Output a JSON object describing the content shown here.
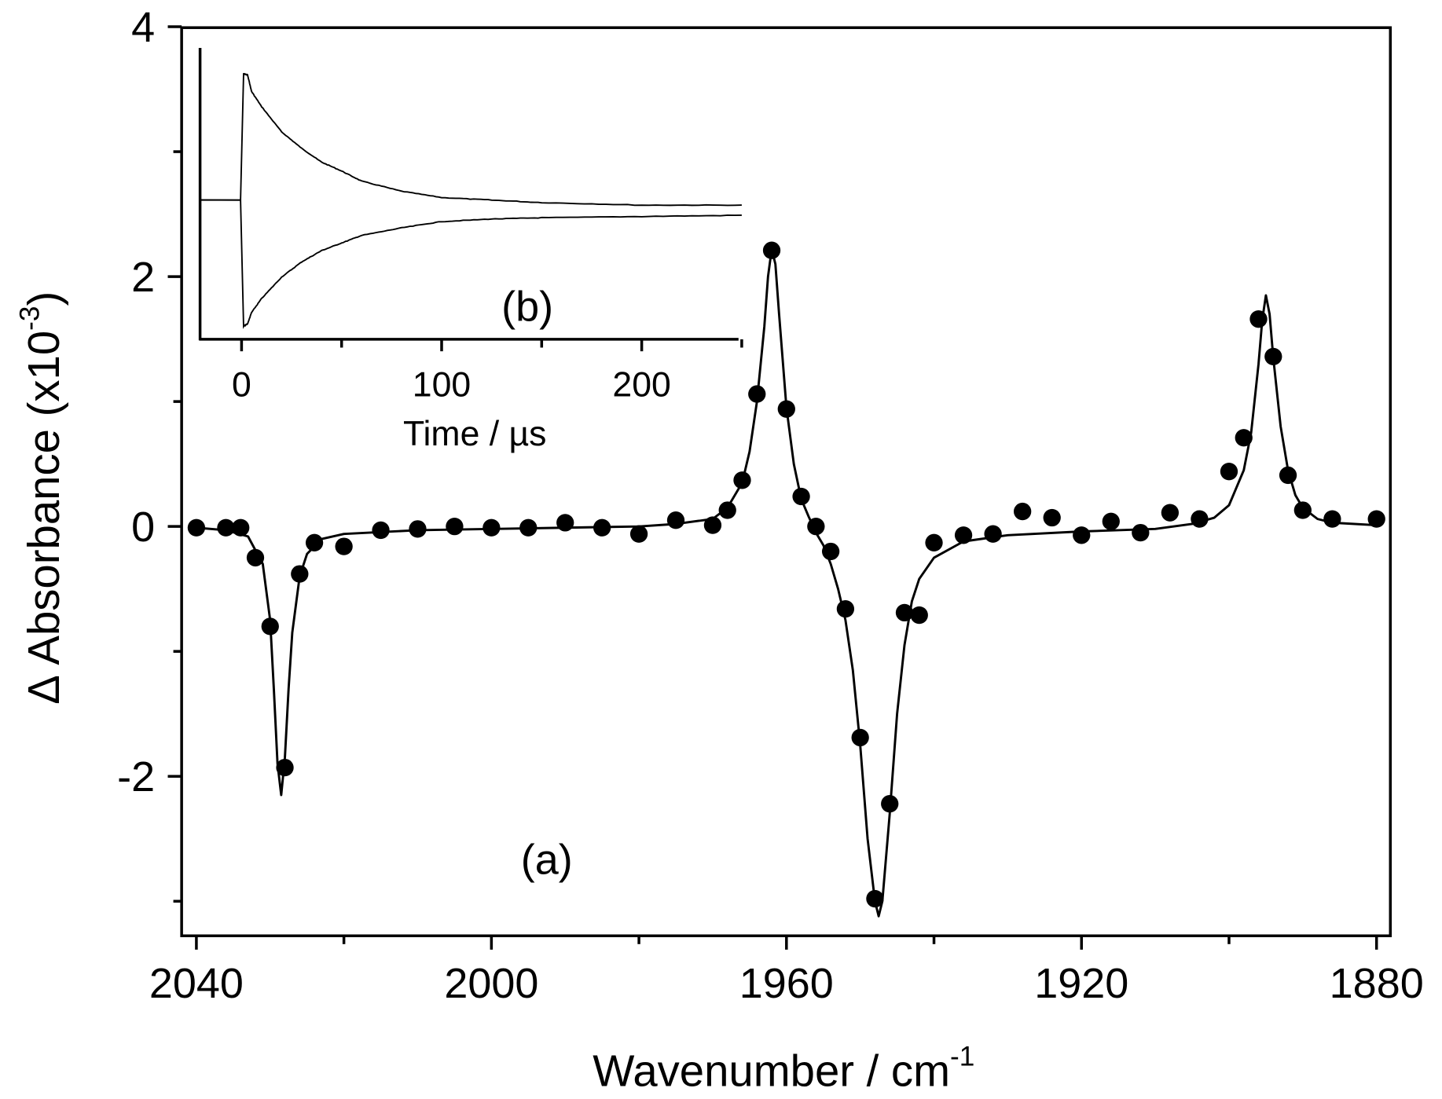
{
  "chart_data": [
    {
      "type": "scatter",
      "panel_label": "(a)",
      "xlabel": "Wavenumber / cm",
      "xlabel_sup": "-1",
      "ylabel": "Δ Absorbance (x10",
      "ylabel_sup": "-3",
      "ylabel_end": ")",
      "xlim": [
        2040,
        1880
      ],
      "x_reversed": true,
      "ylim": [
        -3.28,
        4
      ],
      "xticks": [
        "2040",
        "2000",
        "1960",
        "1920",
        "1880"
      ],
      "xtick_values": [
        2040,
        2000,
        1960,
        1920,
        1880
      ],
      "x_minor_ticks": [
        2020,
        1980,
        1940,
        1900
      ],
      "yticks": [
        "4",
        "2",
        "0",
        "-2"
      ],
      "ytick_values": [
        4,
        2,
        0,
        -2
      ],
      "y_minor_ticks": [
        3,
        1,
        -1,
        -3
      ],
      "grid": false,
      "series": [
        {
          "style": "filled-circles",
          "x": [
            2040,
            2036,
            2034,
            2032,
            2030,
            2028,
            2026,
            2024,
            2020,
            2015,
            2010,
            2005,
            2000,
            1995,
            1990,
            1985,
            1980,
            1975,
            1970,
            1968,
            1966,
            1964,
            1962,
            1960,
            1958,
            1956,
            1954,
            1952,
            1950,
            1948,
            1946,
            1944,
            1942,
            1940,
            1936,
            1932,
            1928,
            1924,
            1920,
            1916,
            1912,
            1908,
            1904,
            1900,
            1898,
            1896,
            1894,
            1892,
            1890,
            1886,
            1880
          ],
          "y": [
            -0.01,
            -0.01,
            -0.01,
            -0.25,
            -0.8,
            -1.93,
            -0.38,
            -0.13,
            -0.16,
            -0.03,
            -0.02,
            0,
            -0.01,
            -0.01,
            0.03,
            -0.01,
            -0.06,
            0.05,
            0.01,
            0.13,
            0.37,
            1.06,
            2.21,
            0.94,
            0.24,
            0,
            -0.2,
            -0.66,
            -1.69,
            -2.98,
            -2.22,
            -0.69,
            -0.71,
            -0.13,
            -0.07,
            -0.06,
            0.12,
            0.07,
            -0.07,
            0.04,
            -0.05,
            0.11,
            0.06,
            0.44,
            0.71,
            1.66,
            1.36,
            0.41,
            0.13,
            0.06,
            0.06
          ]
        },
        {
          "style": "line",
          "x": [
            2040,
            2036,
            2033,
            2031,
            2030,
            2029.5,
            2029,
            2028.5,
            2028,
            2027.5,
            2027,
            2026,
            2025,
            2023,
            2020,
            2010,
            2000,
            1990,
            1980,
            1975,
            1970,
            1968,
            1966,
            1965,
            1964,
            1963,
            1962.5,
            1962,
            1961.5,
            1961,
            1960,
            1959,
            1958,
            1957,
            1956,
            1955,
            1954,
            1953,
            1952,
            1951,
            1950,
            1949,
            1948,
            1947.5,
            1947,
            1946,
            1945,
            1944,
            1943,
            1942,
            1940,
            1936,
            1930,
            1920,
            1910,
            1905,
            1902,
            1900,
            1898,
            1897,
            1896,
            1895.5,
            1895,
            1894.5,
            1894,
            1893,
            1892,
            1891,
            1890,
            1888,
            1886,
            1880
          ],
          "y": [
            -0.01,
            -0.03,
            -0.08,
            -0.3,
            -0.75,
            -1.3,
            -1.9,
            -2.15,
            -1.85,
            -1.3,
            -0.85,
            -0.4,
            -0.22,
            -0.1,
            -0.06,
            -0.03,
            -0.02,
            -0.01,
            0,
            0.02,
            0.06,
            0.15,
            0.35,
            0.6,
            1.0,
            1.6,
            2.0,
            2.22,
            2.1,
            1.7,
            0.95,
            0.5,
            0.22,
            0.08,
            -0.05,
            -0.15,
            -0.3,
            -0.5,
            -0.75,
            -1.15,
            -1.75,
            -2.5,
            -3.0,
            -3.12,
            -3.0,
            -2.3,
            -1.5,
            -0.95,
            -0.6,
            -0.42,
            -0.25,
            -0.12,
            -0.07,
            -0.04,
            -0.02,
            0.02,
            0.07,
            0.17,
            0.45,
            0.75,
            1.3,
            1.65,
            1.85,
            1.7,
            1.35,
            0.8,
            0.45,
            0.25,
            0.15,
            0.06,
            0.03,
            0.01
          ]
        }
      ]
    },
    {
      "type": "line",
      "panel_label": "(b)",
      "xlabel": "Time / µs",
      "ylabel": "",
      "xlim": [
        -21,
        250
      ],
      "xticks": [
        "0",
        "100",
        "200"
      ],
      "xtick_values": [
        0,
        100,
        200
      ],
      "x_minor_ticks": [
        50,
        150,
        250
      ],
      "y_axis_labels": "none",
      "grid": false,
      "series": [
        {
          "x": [
            -21,
            -0.5,
            1,
            3,
            5,
            10,
            20,
            30,
            40,
            50,
            60,
            80,
            100,
            125,
            150,
            200,
            250
          ],
          "y": [
            0,
            0,
            1.0,
            0.99,
            0.86,
            0.74,
            0.54,
            0.41,
            0.3,
            0.23,
            0.15,
            0.07,
            0.02,
            0,
            -0.02,
            -0.04,
            -0.04
          ]
        },
        {
          "x": [
            -21,
            -0.5,
            1,
            3,
            5,
            10,
            20,
            30,
            40,
            50,
            60,
            80,
            100,
            125,
            150,
            200,
            250
          ],
          "y": [
            0,
            0,
            -1.0,
            -0.98,
            -0.89,
            -0.78,
            -0.61,
            -0.49,
            -0.4,
            -0.34,
            -0.28,
            -0.22,
            -0.17,
            -0.15,
            -0.14,
            -0.13,
            -0.12
          ]
        }
      ]
    }
  ]
}
